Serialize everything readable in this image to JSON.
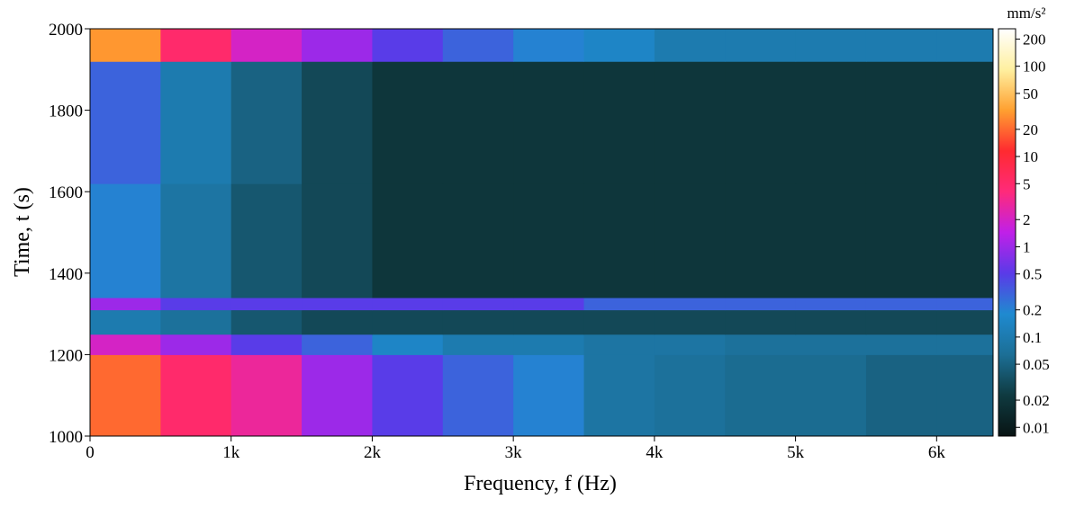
{
  "chart_data": {
    "type": "heatmap",
    "xlabel": "Frequency, f (Hz)",
    "ylabel": "Time, t (s)",
    "colorbar_label": "mm/s²",
    "xbins": [
      0,
      500,
      1000,
      1500,
      2000,
      2500,
      3000,
      3500,
      4000,
      4500,
      5000,
      5500,
      6000,
      6400
    ],
    "ybins": [
      1000,
      1200,
      1250,
      1310,
      1340,
      1620,
      1920,
      2000
    ],
    "z": [
      [
        20,
        5,
        3,
        1,
        0.5,
        0.3,
        0.2,
        0.08,
        0.07,
        0.06,
        0.06,
        0.05,
        0.05
      ],
      [
        2,
        1,
        0.5,
        0.3,
        0.15,
        0.1,
        0.1,
        0.08,
        0.08,
        0.07,
        0.07,
        0.07,
        0.07
      ],
      [
        0.1,
        0.07,
        0.04,
        0.03,
        0.03,
        0.03,
        0.03,
        0.03,
        0.03,
        0.03,
        0.03,
        0.03,
        0.03
      ],
      [
        1,
        0.5,
        0.5,
        0.5,
        0.5,
        0.5,
        0.5,
        0.3,
        0.3,
        0.3,
        0.3,
        0.3,
        0.3
      ],
      [
        0.2,
        0.08,
        0.04,
        0.03,
        0.02,
        0.02,
        0.02,
        0.02,
        0.02,
        0.02,
        0.02,
        0.02,
        0.02
      ],
      [
        0.3,
        0.1,
        0.05,
        0.03,
        0.02,
        0.02,
        0.02,
        0.02,
        0.02,
        0.02,
        0.02,
        0.02,
        0.02
      ],
      [
        30,
        5,
        2,
        1,
        0.5,
        0.3,
        0.2,
        0.15,
        0.1,
        0.1,
        0.1,
        0.1,
        0.1
      ]
    ],
    "xlim": [
      0,
      6400
    ],
    "xticks": [
      0,
      {
        "value": 1000,
        "label": "1k"
      },
      {
        "value": 2000,
        "label": "2k"
      },
      {
        "value": 3000,
        "label": "3k"
      },
      {
        "value": 4000,
        "label": "4k"
      },
      {
        "value": 5000,
        "label": "5k"
      },
      {
        "value": 6000,
        "label": "6k"
      }
    ],
    "ylim": [
      1000,
      2000
    ],
    "yticks": [
      1000,
      1200,
      1400,
      1600,
      1800,
      2000
    ],
    "zlim": [
      0.008,
      260
    ],
    "zscale": "log",
    "zticks": [
      0.01,
      0.02,
      0.05,
      0.1,
      0.2,
      0.5,
      1,
      2,
      5,
      10,
      20,
      50,
      100,
      200
    ],
    "colors": [
      "#081414",
      "#0f3a40",
      "#1c6f96",
      "#1f8ad0",
      "#5a3ae8",
      "#c020e8",
      "#ff2a7a",
      "#ff2a30",
      "#ffa030",
      "#fff0a0",
      "#ffffff"
    ]
  }
}
